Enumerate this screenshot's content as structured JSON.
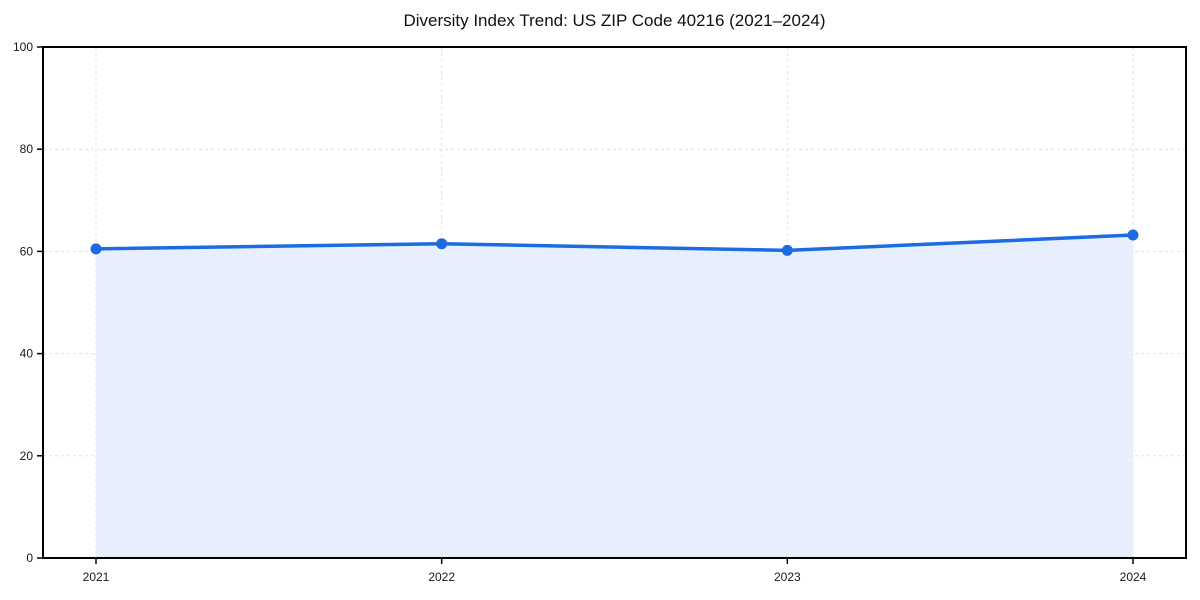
{
  "chart_data": {
    "type": "line",
    "title": "Diversity Index Trend: US ZIP Code 40216 (2021–2024)",
    "x": [
      "2021",
      "2022",
      "2023",
      "2024"
    ],
    "series": [
      {
        "name": "Diversity Index",
        "values": [
          60.5,
          61.5,
          60.2,
          63.2
        ]
      }
    ],
    "xlabel": "",
    "ylabel": "",
    "ylim": [
      0,
      100
    ],
    "yticks": [
      0,
      20,
      40,
      60,
      80,
      100
    ],
    "grid": "dashed",
    "legend_position": "none",
    "area_fill": true,
    "marker": "circle",
    "colors": {
      "line": "#1c6be2",
      "marker": "#1c6be2",
      "fill": "#e8effc",
      "grid": "#e2e2e2",
      "axis": "#000000",
      "tick_text": "#1a1a1a",
      "background": "#ffffff"
    }
  }
}
